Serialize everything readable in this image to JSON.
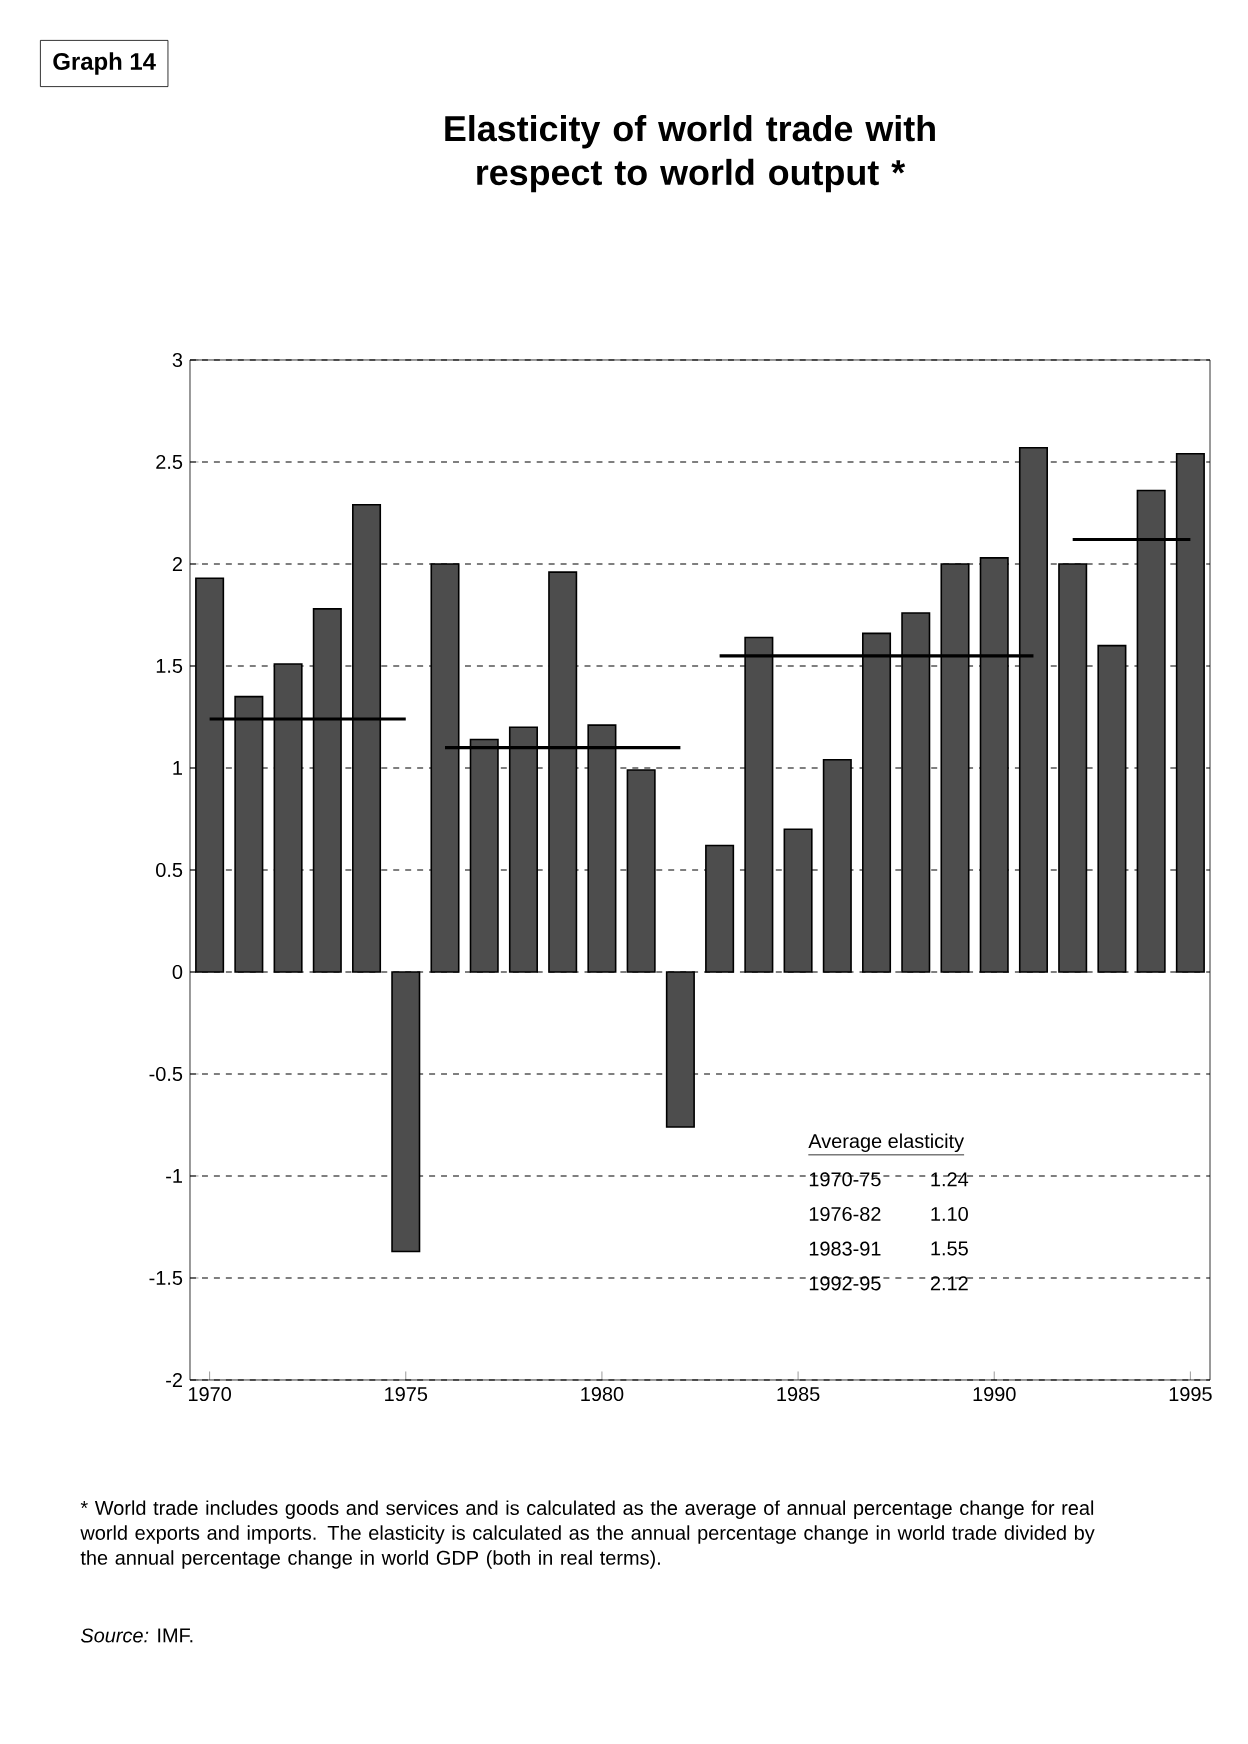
{
  "chart_data": {
    "type": "bar",
    "title": "Elasticity of world trade with respect to  world output  *",
    "x": [
      1970,
      1971,
      1972,
      1973,
      1974,
      1975,
      1976,
      1977,
      1978,
      1979,
      1980,
      1981,
      1982,
      1983,
      1984,
      1985,
      1986,
      1987,
      1988,
      1989,
      1990,
      1991,
      1992,
      1993,
      1994,
      1995
    ],
    "series": [
      {
        "color": "#4d4d4d",
        "values": [
          1.93,
          1.35,
          1.51,
          1.78,
          2.29,
          -1.37,
          2.0,
          1.14,
          1.2,
          1.96,
          1.21,
          0.99,
          -0.76,
          0.62,
          1.64,
          0.7,
          1.04,
          1.66,
          1.76,
          2.0,
          2.03,
          2.57,
          2.0,
          1.6,
          2.36,
          2.54
        ]
      },
      {
        "type": "line",
        "color": "#000000",
        "x": [
          1970,
          1975
        ],
        "values": [
          1.24,
          1.24
        ]
      },
      {
        "type": "line",
        "color": "#000000",
        "x": [
          1976,
          1982
        ],
        "values": [
          1.1,
          1.1
        ]
      },
      {
        "type": "line",
        "color": "#000000",
        "x": [
          1983,
          1991
        ],
        "values": [
          1.55,
          1.55
        ]
      },
      {
        "type": "line",
        "color": "#000000",
        "x": [
          1992,
          1995
        ],
        "values": [
          2.12,
          2.12
        ]
      }
    ],
    "xlim": [
      1969.5,
      1995.5
    ],
    "xticks": [
      1970,
      1975,
      1980,
      1985,
      1990,
      1995
    ],
    "ylim": [
      -2,
      3
    ],
    "yticks": [
      -2,
      -1.5,
      -1,
      -0.5,
      0,
      0.5,
      1,
      1.5,
      2,
      2.5,
      3
    ],
    "grid": "y",
    "annotations": [
      "Graph 14",
      "Average elasticity",
      "1970-75",
      "1.24",
      "1976-82",
      "1.10",
      "1983-91",
      "1.55",
      "1992-95",
      "2.12",
      "* World trade includes goods and services and is calculated as the average of annual percentage change for real world exports and imports. The elasticity is calculated as the annual percentage change in world trade divided by the annual percentage change in world GDP (both in real terms).",
      "*Source:* IMF."
    ]
  }
}
